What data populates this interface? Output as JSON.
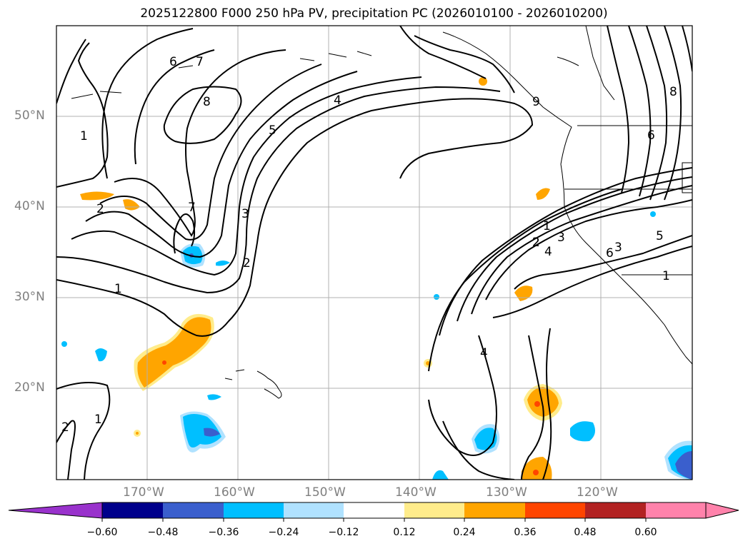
{
  "title": "2025122800 F000 250 hPa PV, precipitation PC (2026010100 - 2026010200)",
  "lon_labels": [
    "170°W",
    "160°W",
    "150°W",
    "140°W",
    "130°W",
    "120°W"
  ],
  "lat_labels": [
    "50°N",
    "40°N",
    "30°N",
    "20°N"
  ],
  "contour_labels": [
    "1",
    "1",
    "1",
    "1",
    "2",
    "2",
    "2",
    "2",
    "3",
    "3",
    "4",
    "4",
    "4",
    "5",
    "5",
    "6",
    "6",
    "6",
    "7",
    "7",
    "8",
    "8",
    "9",
    "1",
    "2",
    "3"
  ],
  "colorbar": {
    "ticks": [
      "−0.60",
      "−0.48",
      "−0.36",
      "−0.24",
      "−0.12",
      "0.12",
      "0.24",
      "0.36",
      "0.48",
      "0.60"
    ],
    "colors": [
      "#9932cc",
      "#00008b",
      "#3a5fcd",
      "#00bfff",
      "#b0e2ff",
      "#ffffff",
      "#ffec8b",
      "#ffa500",
      "#ff4500",
      "#b22222",
      "#ff82ab"
    ]
  },
  "shade_colors": {
    "light_blue": "#b0e2ff",
    "blue": "#00bfff",
    "dark_blue": "#3a5fcd",
    "purple": "#9932cc",
    "yellow": "#ffec8b",
    "orange": "#ffa500",
    "red_orange": "#ff4500"
  }
}
